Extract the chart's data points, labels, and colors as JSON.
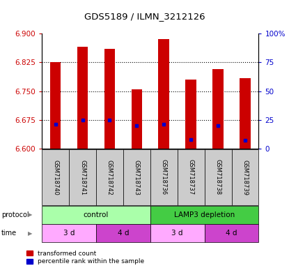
{
  "title": "GDS5189 / ILMN_3212126",
  "samples": [
    "GSM718740",
    "GSM718741",
    "GSM718742",
    "GSM718743",
    "GSM718736",
    "GSM718737",
    "GSM718738",
    "GSM718739"
  ],
  "red_values": [
    6.825,
    6.865,
    6.86,
    6.755,
    6.885,
    6.78,
    6.808,
    6.783
  ],
  "blue_values": [
    6.663,
    6.675,
    6.675,
    6.66,
    6.663,
    6.623,
    6.66,
    6.622
  ],
  "ylim_left": [
    6.6,
    6.9
  ],
  "yticks_left": [
    6.6,
    6.675,
    6.75,
    6.825,
    6.9
  ],
  "yticks_right": [
    0,
    25,
    50,
    75,
    100
  ],
  "ylim_right": [
    0,
    100
  ],
  "bar_color": "#cc0000",
  "dot_color": "#0000cc",
  "grid_color": "#000000",
  "protocol_labels": [
    "control",
    "LAMP3 depletion"
  ],
  "protocol_colors": [
    "#aaffaa",
    "#44cc44"
  ],
  "time_labels": [
    "3 d",
    "4 d",
    "3 d",
    "4 d"
  ],
  "time_colors": [
    "#ffaaff",
    "#cc44cc",
    "#ffaaff",
    "#cc44cc"
  ],
  "legend_red": "transformed count",
  "legend_blue": "percentile rank within the sample",
  "bar_color_left": "#cc0000",
  "ylabel_right_color": "#0000cc",
  "bar_width": 0.4,
  "base_value": 6.6
}
